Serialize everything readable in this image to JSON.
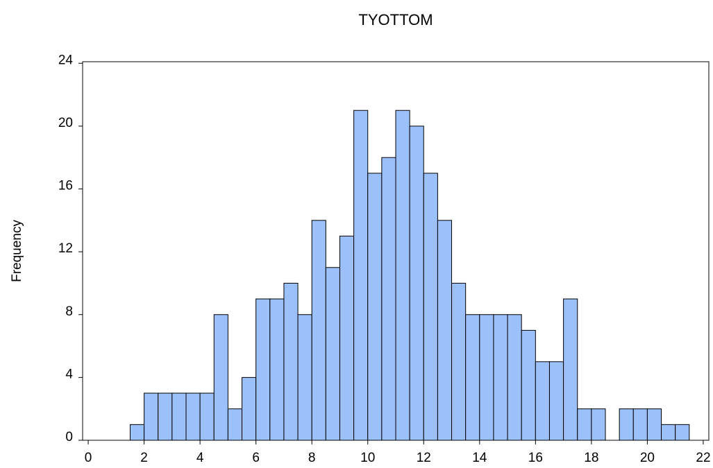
{
  "chart_data": {
    "type": "histogram",
    "title": "TYOTTOM",
    "y_label": "Frequency",
    "bins": [
      1.5,
      2,
      2.5,
      3,
      3.5,
      4,
      4.5,
      5,
      5.5,
      6,
      6.5,
      7,
      7.5,
      8,
      8.5,
      9,
      9.5,
      10,
      10.5,
      11,
      11.5,
      12,
      12.5,
      13,
      13.5,
      14,
      14.5,
      15,
      15.5,
      16,
      16.5,
      17,
      17.5,
      18,
      18.5,
      19,
      19.5,
      20,
      20.5,
      21,
      21.5
    ],
    "values": [
      1,
      3,
      3,
      3,
      3,
      3,
      8,
      2,
      4,
      9,
      9,
      10,
      8,
      14,
      11,
      13,
      21,
      17,
      18,
      21,
      20,
      17,
      14,
      10,
      8,
      8,
      8,
      8,
      7,
      5,
      5,
      9,
      2,
      2,
      0,
      2,
      2,
      2,
      1,
      1
    ],
    "color": "#9cc0f9",
    "xlim": [
      -0.2,
      22.2
    ],
    "xticks": [
      0,
      2,
      4,
      6,
      8,
      10,
      12,
      14,
      16,
      18,
      20,
      22
    ],
    "ylim": [
      0,
      24.1
    ],
    "yticks": [
      0,
      4,
      8,
      12,
      16,
      20,
      24
    ],
    "grid": false
  }
}
